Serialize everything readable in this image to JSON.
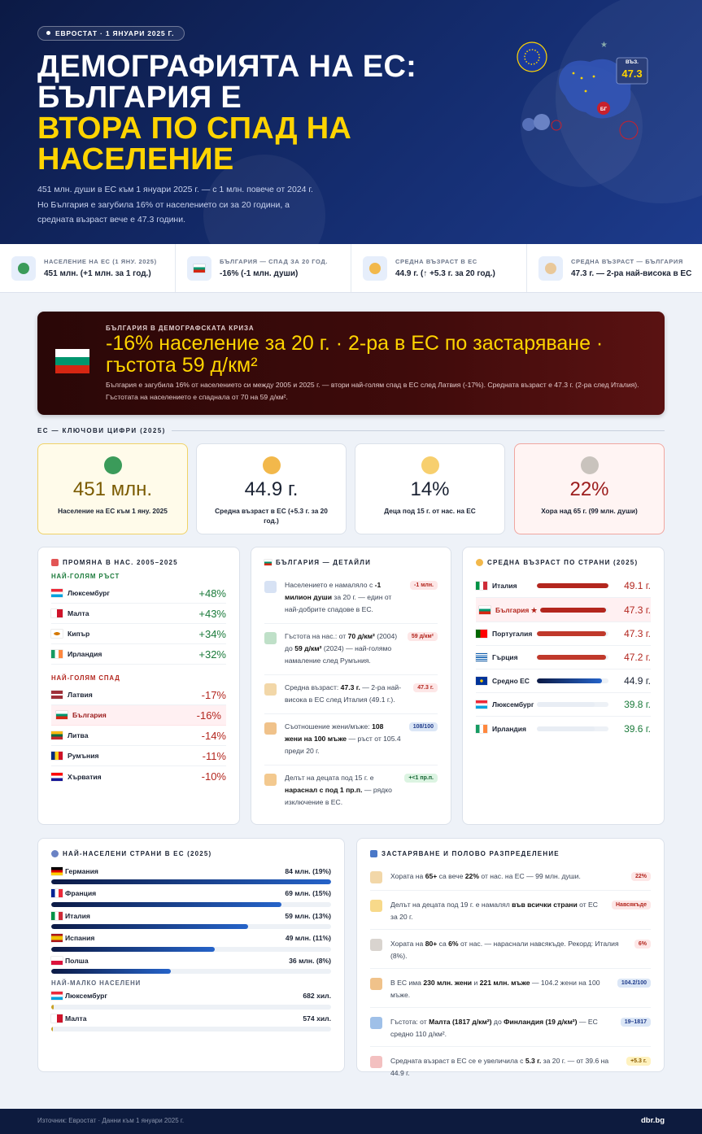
{
  "header": {
    "badge": "ЕВРОСТАТ · 1 ЯНУАРИ 2025 Г.",
    "title_lines": [
      "ДЕМОГРАФИЯТА НА ЕС:",
      "БЪЛГАРИЯ Е"
    ],
    "title_highlight_lines": [
      "ВТОРА ПО СПАД НА",
      "НАСЕЛЕНИЕ"
    ],
    "subtitle": "451 млн. души в ЕС към 1 януари 2025 г. — с 1 млн. повече от 2024 г. Но България е загубила 16% от населението си за 20 години, а средната възраст вече е 47.3 години.",
    "illustration": {
      "age_label": "ВЪЗ.",
      "age_value": "47.3",
      "country_tag": "БГ"
    }
  },
  "stats": [
    {
      "label": "НАСЕЛЕНИЕ НА ЕС (1 ЯНУ. 2025)",
      "value": "451 млн. (+1 млн. за 1 год.)"
    },
    {
      "label": "БЪЛГАРИЯ — СПАД ЗА 20 ГОД.",
      "value": "-16% (-1 млн. души)"
    },
    {
      "label": "СРЕДНА ВЪЗРАСТ В ЕС",
      "value": "44.9 г. (↑ +5.3 г. за 20 год.)"
    },
    {
      "label": "СРЕДНА ВЪЗРАСТ — БЪЛГАРИЯ",
      "value": "47.3 г. — 2-ра най-висока в ЕС"
    }
  ],
  "banner": {
    "kicker": "БЪЛГАРИЯ В ДЕМОГРАФСКАТА КРИЗА",
    "headline": "-16% население за 20 г. · 2-ра в ЕС по застаряване · гъстота 59 д/км²",
    "text": "България е загубила 16% от населението си между 2005 и 2025 г. — втори най-голям спад в ЕС след Латвия (-17%). Средната възраст е 47.3 г. (2-ра след Италия). Гъстотата на населението е спаднала от 70 на 59 д/км²."
  },
  "key_figures": {
    "heading": "ЕС — КЛЮЧОВИ ЦИФРИ (2025)",
    "cards": [
      {
        "value": "451 млн.",
        "label": "Население на ЕС към 1 яну. 2025"
      },
      {
        "value": "44.9 г.",
        "label": "Средна възраст в ЕС (+5.3 г. за 20 год.)"
      },
      {
        "value": "14%",
        "label": "Деца под 15 г. от нас. на ЕС"
      },
      {
        "value": "22%",
        "label": "Хора над 65 г. (99 млн. души)"
      }
    ]
  },
  "change": {
    "title": "ПРОМЯНА В НАС. 2005–2025",
    "growth_heading": "НАЙ-ГОЛЯМ РЪСТ",
    "growth": [
      {
        "country": "Люксембург",
        "value": "+48%"
      },
      {
        "country": "Малта",
        "value": "+43%"
      },
      {
        "country": "Кипър",
        "value": "+34%"
      },
      {
        "country": "Ирландия",
        "value": "+32%"
      }
    ],
    "decline_heading": "НАЙ-ГОЛЯМ СПАД",
    "decline": [
      {
        "country": "Латвия",
        "value": "-17%"
      },
      {
        "country": "България",
        "value": "-16%"
      },
      {
        "country": "Литва",
        "value": "-14%"
      },
      {
        "country": "Румъния",
        "value": "-11%"
      },
      {
        "country": "Хърватия",
        "value": "-10%"
      }
    ]
  },
  "bulgaria": {
    "title": "БЪЛГАРИЯ — ДЕТАЙЛИ",
    "items": [
      {
        "parts": [
          "Населението е намаляло с ",
          "-1 милион души",
          " за 20 г. — един от най-добрите спадове в ЕС."
        ],
        "tag": "-1 млн."
      },
      {
        "parts": [
          "Гъстота на нас.: от ",
          "70 д/км²",
          " (2004) до ",
          "59 д/км²",
          " (2024) — най-голямо намаление след Румъния."
        ],
        "tag": "59 д/км²"
      },
      {
        "parts": [
          "Средна възраст: ",
          "47.3 г.",
          " — 2-ра най-висока в ЕС след Италия (49.1 г.)."
        ],
        "tag": "47.3 г."
      },
      {
        "parts": [
          "Съотношение жени/мъже: ",
          "108 жени на 100 мъже",
          " — ръст от 105.4 преди 20 г."
        ],
        "tag": "108/100"
      },
      {
        "parts": [
          "Делът на децата под 15 г. е ",
          "нараснал с под 1 пр.п.",
          " — рядко изключение в ЕС."
        ],
        "tag": "+<1 пр.п."
      }
    ]
  },
  "median_age": {
    "title": "СРЕДНА ВЪЗРАСТ ПО СТРАНИ (2025)",
    "countries": [
      "Италия",
      "България ★",
      "Португалия",
      "Гърция",
      "Средно ЕС",
      "Люксембург",
      "Ирландия"
    ],
    "values": [
      49.1,
      47.3,
      47.3,
      47.2,
      44.9,
      39.8,
      39.6
    ],
    "value_labels": [
      "49.1 г.",
      "47.3 г.",
      "47.3 г.",
      "47.2 г.",
      "44.9 г.",
      "39.8 г.",
      "39.6 г."
    ],
    "xlim": [
      0,
      49.1
    ]
  },
  "population": {
    "title": "НАЙ-НАСЕЛЕНИ СТРАНИ В ЕС (2025)",
    "countries": [
      "Германия",
      "Франция",
      "Италия",
      "Испания",
      "Полша"
    ],
    "values": [
      84,
      69,
      59,
      49,
      36
    ],
    "value_labels": [
      "84 млн. (19%)",
      "69 млн. (15%)",
      "59 млн. (13%)",
      "49 млн. (11%)",
      "36 млн. (8%)"
    ],
    "small_heading": "НАЙ-МАЛКО НАСЕЛЕНИ",
    "small_countries": [
      "Люксембург",
      "Малта"
    ],
    "small_values": [
      0.682,
      0.574
    ],
    "small_value_labels": [
      "682 хил.",
      "574 хил."
    ],
    "xlim": [
      0,
      84
    ]
  },
  "aging": {
    "title": "ЗАСТАРЯВАНЕ И ПОЛОВО РАЗПРЕДЕЛЕНИЕ",
    "items": [
      {
        "parts": [
          "Хората на ",
          "65+",
          " са вече ",
          "22%",
          " от нас. на ЕС — 99 млн. души."
        ],
        "tag": "22%"
      },
      {
        "parts": [
          "Делът на децата под 19 г. е намалял ",
          "във всички страни",
          " от ЕС за 20 г."
        ],
        "tag": "Навсякъде"
      },
      {
        "parts": [
          "Хората на ",
          "80+",
          " са ",
          "6%",
          " от нас. — нараснали навсякъде. Рекорд: Италия (8%)."
        ],
        "tag": "6%"
      },
      {
        "parts": [
          "В ЕС има ",
          "230 млн. жени",
          " и ",
          "221 млн. мъже",
          " — 104.2 жени на 100 мъже."
        ],
        "tag": "104.2/100"
      },
      {
        "parts": [
          "Гъстота: от ",
          "Малта (1817 д/км²)",
          " до ",
          "Финландия (19 д/км²)",
          " — ЕС средно 110 д/км²."
        ],
        "tag": "19–1817"
      },
      {
        "parts": [
          "Средната възраст в ЕС се е увеличила с ",
          "5.3 г.",
          " за 20 г. — от 39.6 на 44.9 г."
        ],
        "tag": "+5.3 г."
      }
    ]
  },
  "footer": {
    "source": "Източник: Евростат · Данни към 1 януари 2025 г.",
    "brand": "dbr.bg"
  }
}
